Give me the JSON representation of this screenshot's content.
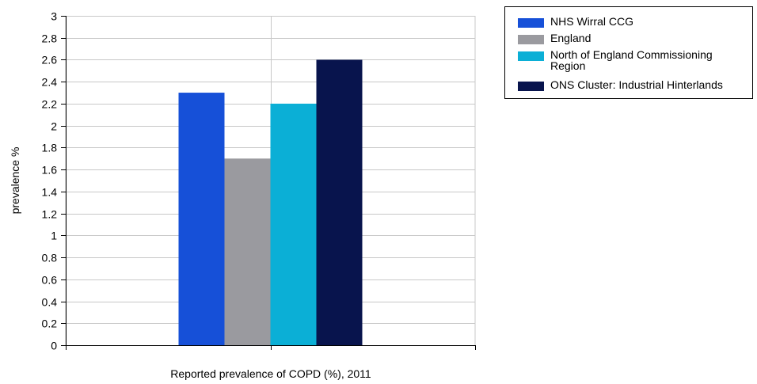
{
  "chart_data": {
    "type": "bar",
    "categories": [
      "Reported prevalence of COPD (%), 2011"
    ],
    "series": [
      {
        "name": "NHS Wirral CCG",
        "values": [
          2.3
        ],
        "color": "#1650d8"
      },
      {
        "name": "England",
        "values": [
          1.7
        ],
        "color": "#9a9a9f"
      },
      {
        "name": "North of England Commissioning Region",
        "values": [
          2.2
        ],
        "color": "#0bafd6"
      },
      {
        "name": "ONS Cluster: Industrial Hinterlands",
        "values": [
          2.6
        ],
        "color": "#08144d"
      }
    ],
    "title": "",
    "xlabel": "Reported prevalence of COPD (%), 2011",
    "ylabel": "prevalence %",
    "ylim": [
      0,
      3
    ],
    "yticks": [
      "0",
      "0.2",
      "0.4",
      "0.6",
      "0.8",
      "1",
      "1.2",
      "1.4",
      "1.6",
      "1.8",
      "2",
      "2.2",
      "2.4",
      "2.6",
      "2.8",
      "3"
    ],
    "grid": true,
    "legend_position": "top-right"
  },
  "legend": {
    "items": [
      {
        "label": "NHS Wirral CCG",
        "color": "#1650d8"
      },
      {
        "label": "England",
        "color": "#9a9a9f"
      },
      {
        "label": "North of England Commissioning Region",
        "color": "#0bafd6"
      },
      {
        "label": "ONS Cluster: Industrial Hinterlands",
        "color": "#08144d"
      }
    ]
  }
}
